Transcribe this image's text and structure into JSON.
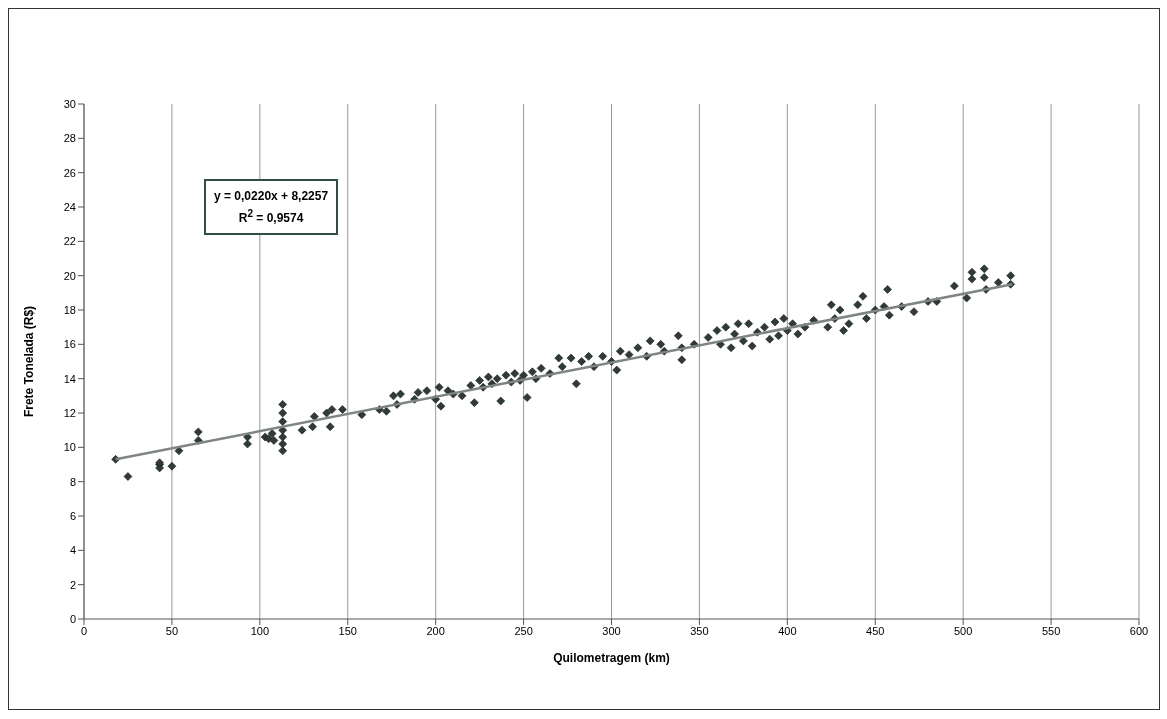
{
  "chart_data": {
    "type": "scatter",
    "xlabel": "Quilometragem (km)",
    "ylabel": "Frete Tonelada (R$)",
    "annotations": [
      "y = 0,0220x + 8,2257",
      "R$^{2}$ = 0,9574"
    ],
    "xlim": [
      0,
      600
    ],
    "xticks": [
      0,
      50,
      100,
      150,
      200,
      250,
      300,
      350,
      400,
      450,
      500,
      550,
      600
    ],
    "ylim": [
      0,
      30
    ],
    "yticks": [
      0,
      2,
      4,
      6,
      8,
      10,
      12,
      14,
      16,
      18,
      20,
      22,
      24,
      26,
      28,
      30
    ],
    "grid": "x",
    "series": [
      {
        "marker": "diamond",
        "color": "#2f3b3a",
        "x": [
          18,
          25,
          43,
          43,
          43,
          50,
          54,
          65,
          65,
          93,
          93,
          103,
          105,
          107,
          108,
          113,
          113,
          113,
          113,
          113,
          113,
          113,
          124,
          130,
          131,
          138,
          140,
          141,
          147,
          158,
          168,
          172,
          176,
          178,
          180,
          188,
          190,
          195,
          200,
          202,
          203,
          207,
          210,
          215,
          220,
          222,
          225,
          227,
          230,
          232,
          235,
          237,
          240,
          243,
          245,
          248,
          250,
          252,
          255,
          257,
          260,
          265,
          270,
          272,
          277,
          280,
          283,
          287,
          290,
          295,
          300,
          303,
          305,
          310,
          315,
          320,
          322,
          328,
          330,
          338,
          340,
          340,
          347,
          355,
          360,
          362,
          365,
          368,
          370,
          372,
          375,
          378,
          380,
          383,
          387,
          390,
          393,
          395,
          398,
          400,
          403,
          406,
          410,
          415,
          423,
          425,
          427,
          430,
          432,
          435,
          440,
          443,
          445,
          450,
          455,
          457,
          458,
          465,
          472,
          480,
          485,
          495,
          502,
          505,
          505,
          512,
          512,
          513,
          520,
          527,
          527
        ],
        "values": [
          9.3,
          8.3,
          9.0,
          8.8,
          9.1,
          8.9,
          9.8,
          10.9,
          10.4,
          10.2,
          10.6,
          10.6,
          10.5,
          10.8,
          10.4,
          12.5,
          12.0,
          11.5,
          11.0,
          10.6,
          10.2,
          9.8,
          11.0,
          11.2,
          11.8,
          12.0,
          11.2,
          12.2,
          12.2,
          11.9,
          12.2,
          12.1,
          13.0,
          12.5,
          13.1,
          12.8,
          13.2,
          13.3,
          12.8,
          13.5,
          12.4,
          13.3,
          13.1,
          13.0,
          13.6,
          12.6,
          13.9,
          13.5,
          14.1,
          13.7,
          14.0,
          12.7,
          14.2,
          13.8,
          14.3,
          13.9,
          14.2,
          12.9,
          14.4,
          14.0,
          14.6,
          14.3,
          15.2,
          14.7,
          15.2,
          13.7,
          15.0,
          15.3,
          14.7,
          15.3,
          15.0,
          14.5,
          15.6,
          15.4,
          15.8,
          15.3,
          16.2,
          16.0,
          15.6,
          16.5,
          15.1,
          15.8,
          16.0,
          16.4,
          16.8,
          16.0,
          17.0,
          15.8,
          16.6,
          17.2,
          16.2,
          17.2,
          15.9,
          16.7,
          17.0,
          16.3,
          17.3,
          16.5,
          17.5,
          16.8,
          17.2,
          16.6,
          17.0,
          17.4,
          17.0,
          18.3,
          17.5,
          18.0,
          16.8,
          17.2,
          18.3,
          18.8,
          17.5,
          18.0,
          18.2,
          19.2,
          17.7,
          18.2,
          17.9,
          18.5,
          18.5,
          19.4,
          18.7,
          20.2,
          19.8,
          20.4,
          19.9,
          19.2,
          19.6,
          20.0,
          19.5
        ]
      },
      {
        "type": "line",
        "marker": "none",
        "color": "#7f8582",
        "x": [
          18,
          528
        ],
        "values": [
          9.3,
          19.5
        ]
      }
    ]
  }
}
